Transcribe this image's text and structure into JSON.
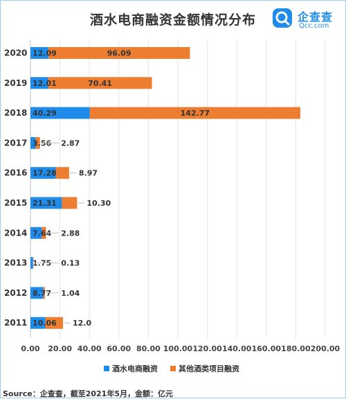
{
  "title": "酒水电商融资金额情况分布",
  "logo": {
    "name": "企查查",
    "domain": "Qcc.com"
  },
  "source": "Source：企查查，截至2021年5月，金额：亿元",
  "colors": {
    "series1": "#1f8ceb",
    "series2": "#ed7d31"
  },
  "chart_data": {
    "type": "bar",
    "orientation": "horizontal",
    "stacked": true,
    "categories": [
      "2020",
      "2019",
      "2018",
      "2017",
      "2016",
      "2015",
      "2014",
      "2013",
      "2012",
      "2011"
    ],
    "series": [
      {
        "name": "酒水电商融资",
        "values": [
          12.09,
          12.01,
          40.29,
          3.56,
          17.28,
          21.31,
          7.64,
          1.75,
          8.77,
          10.06
        ]
      },
      {
        "name": "其他酒类项目融资",
        "values": [
          96.09,
          70.41,
          142.77,
          2.87,
          8.97,
          10.3,
          2.88,
          0.13,
          1.04,
          12.0
        ]
      }
    ],
    "value_labels": [
      [
        "12.09",
        "96.09"
      ],
      [
        "12.01",
        "70.41"
      ],
      [
        "40.29",
        "142.77"
      ],
      [
        "3.56",
        "2.87"
      ],
      [
        "17.28",
        "8.97"
      ],
      [
        "21.31",
        "10.30"
      ],
      [
        "7.64",
        "2.88"
      ],
      [
        "1.75",
        "0.13"
      ],
      [
        "8.77",
        "1.04"
      ],
      [
        "10.06",
        "12.0"
      ]
    ],
    "xlim": [
      0,
      200
    ],
    "xticks": [
      "0.00",
      "20.00",
      "40.00",
      "60.00",
      "80.00",
      "100.00",
      "120.00",
      "140.00",
      "160.00",
      "180.00",
      "200.00"
    ],
    "legend_position": "bottom"
  }
}
